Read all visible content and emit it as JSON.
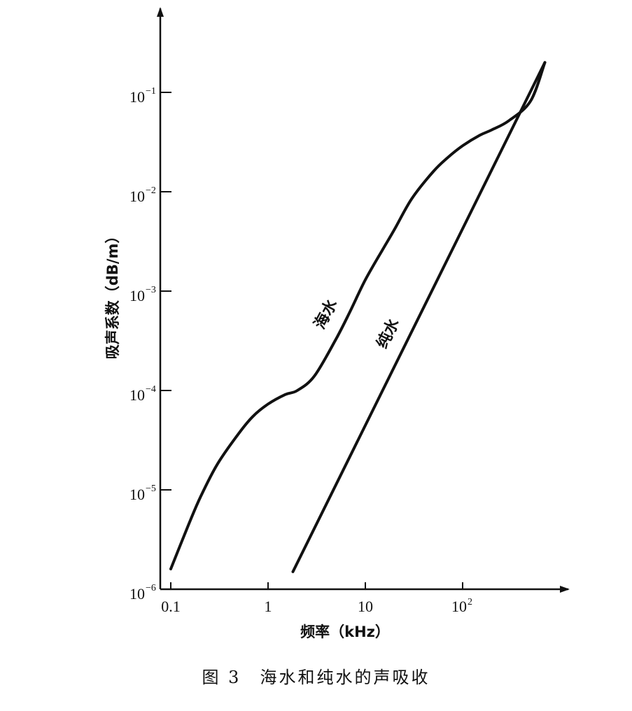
{
  "chart_data": {
    "type": "line",
    "xscale": "log",
    "yscale": "log",
    "xlim": [
      0.1,
      800
    ],
    "ylim": [
      1e-06,
      0.5
    ],
    "xlabel": "频率（kHz）",
    "ylabel": "吸声系数（dB/m）",
    "x_ticks": [
      {
        "value": 0.1,
        "base": "0.1",
        "exp": ""
      },
      {
        "value": 1,
        "base": "1",
        "exp": ""
      },
      {
        "value": 10,
        "base": "10",
        "exp": ""
      },
      {
        "value": 100,
        "base": "10",
        "exp": "2"
      }
    ],
    "y_ticks": [
      {
        "value": 1e-06,
        "base": "10",
        "exp": "−6"
      },
      {
        "value": 1e-05,
        "base": "10",
        "exp": "−5"
      },
      {
        "value": 0.0001,
        "base": "10",
        "exp": "−4"
      },
      {
        "value": 0.001,
        "base": "10",
        "exp": "−3"
      },
      {
        "value": 0.01,
        "base": "10",
        "exp": "−2"
      },
      {
        "value": 0.1,
        "base": "10",
        "exp": "−1"
      }
    ],
    "series": [
      {
        "name": "海水",
        "x": [
          0.1,
          0.15,
          0.2,
          0.3,
          0.5,
          0.7,
          1.0,
          1.5,
          2.0,
          3.0,
          5.0,
          7.0,
          10,
          15,
          20,
          30,
          50,
          70,
          100,
          150,
          200,
          300,
          500,
          700
        ],
        "y": [
          1.6e-06,
          4.3e-06,
          8.3e-06,
          1.8e-05,
          3.7e-05,
          5.5e-05,
          7.3e-05,
          9.1e-05,
          0.0001,
          0.00014,
          0.00033,
          0.00063,
          0.0013,
          0.0026,
          0.0042,
          0.0085,
          0.016,
          0.022,
          0.029,
          0.037,
          0.042,
          0.052,
          0.082,
          0.2
        ]
      },
      {
        "name": "纯水",
        "x": [
          1.8,
          700
        ],
        "y": [
          1.5e-06,
          0.2
        ]
      }
    ],
    "annotations": [
      {
        "text": "海水",
        "series": "海水"
      },
      {
        "text": "纯水",
        "series": "纯水"
      }
    ],
    "grid": false,
    "legend": "none"
  },
  "caption": "图 3　海水和纯水的声吸收"
}
